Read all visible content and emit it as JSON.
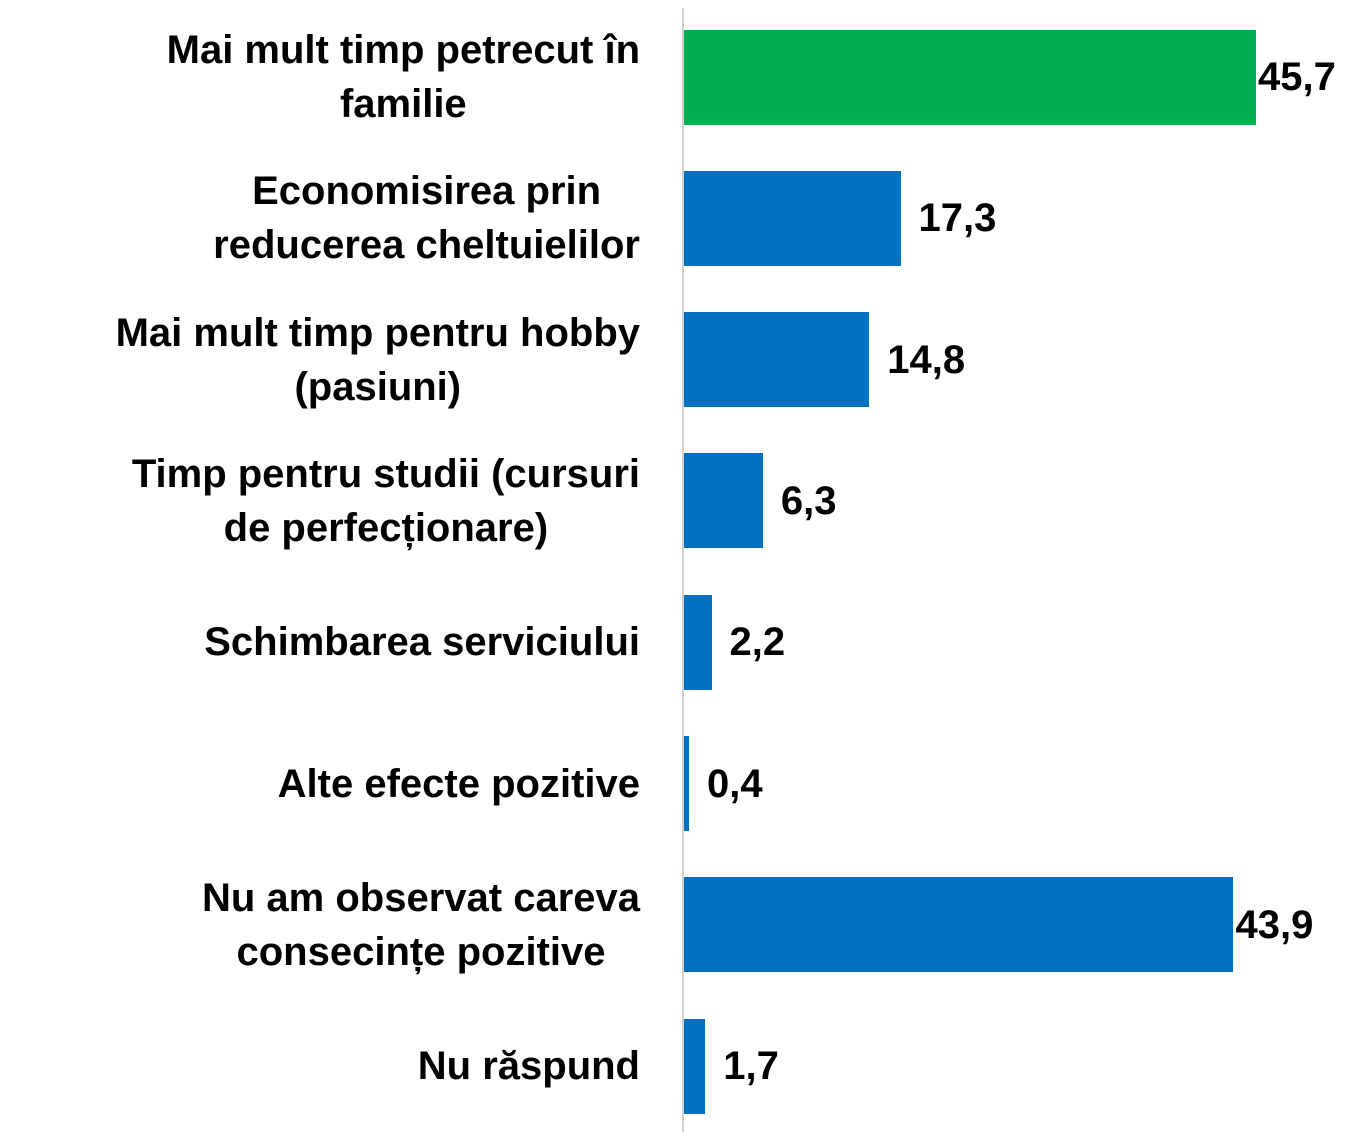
{
  "chart_data": {
    "type": "barh",
    "categories": [
      "Mai mult timp petrecut în\nfamilie",
      "Economisirea prin\nreducerea cheltuielilor",
      "Mai mult timp pentru hobby\n(pasiuni)",
      "Timp pentru studii (cursuri\nde perfecționare)",
      "Schimbarea serviciului",
      "Alte efecte pozitive",
      "Nu am observat careva\nconsecințe pozitive",
      "Nu răspund"
    ],
    "values": [
      45.7,
      17.3,
      14.8,
      6.3,
      2.2,
      0.4,
      43.9,
      1.7
    ],
    "value_labels": [
      "45,7",
      "17,3",
      "14,8",
      "6,3",
      "2,2",
      "0,4",
      "43,9",
      "1,7"
    ],
    "colors": [
      "#00b050",
      "#0070c0",
      "#0070c0",
      "#0070c0",
      "#0070c0",
      "#0070c0",
      "#0070c0",
      "#0070c0"
    ]
  }
}
